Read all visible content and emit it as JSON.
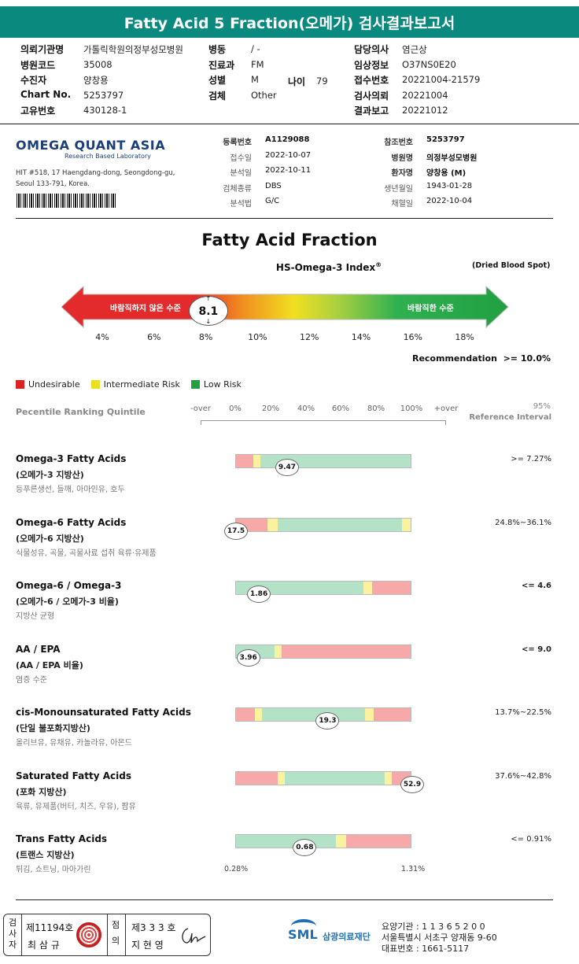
{
  "title": "Fatty Acid 5 Fraction(오메가) 검사결과보고서",
  "header": {
    "col1": [
      {
        "label": "의뢰기관명",
        "value": "가톨릭학원의정부성모병원"
      },
      {
        "label": "병원코드",
        "value": "35008"
      },
      {
        "label": "수진자",
        "value": "양창용"
      },
      {
        "label": "Chart No.",
        "value": "5253797"
      },
      {
        "label": "고유번호",
        "value": "430128-1"
      }
    ],
    "col2": [
      {
        "label": "병동",
        "value": "/ -"
      },
      {
        "label": "진료과",
        "value": "FM"
      },
      {
        "label": "성별",
        "value": "M"
      },
      {
        "label": "검체",
        "value": "Other"
      }
    ],
    "age_label": "나이",
    "age_value": "79",
    "col3": [
      {
        "label": "담당의사",
        "value": "염근상"
      },
      {
        "label": "임상정보",
        "value": "O37NS0E20"
      },
      {
        "label": "접수번호",
        "value": "20221004-21579"
      },
      {
        "label": "검사의뢰",
        "value": "20221004"
      },
      {
        "label": "결과보고",
        "value": "20221012"
      }
    ]
  },
  "lab": {
    "name": "OMEGA QUANT ASIA",
    "tagline": "Research Based Laboratory",
    "address1": "HIT #518, 17 Haengdang-dong, Seongdong-gu,",
    "address2": "Seoul 133-791, Korea."
  },
  "registration": {
    "left": [
      {
        "label": "등록번호",
        "value": "A1129088",
        "bold": true
      },
      {
        "label": "접수일",
        "value": "2022-10-07"
      },
      {
        "label": "분석일",
        "value": "2022-10-11"
      },
      {
        "label": "검체종류",
        "value": "DBS"
      },
      {
        "label": "분석법",
        "value": "G/C"
      }
    ],
    "right": [
      {
        "label": "참조번호",
        "value": "5253797",
        "bold": true
      },
      {
        "label": "병원명",
        "value": "의정부성모병원",
        "bold": true
      },
      {
        "label": "환자명",
        "value": "양창용 (M)",
        "bold": true
      },
      {
        "label": "생년월일",
        "value": "1943-01-28"
      },
      {
        "label": "채혈일",
        "value": "2022-10-04"
      }
    ]
  },
  "index": {
    "title": "Fatty Acid Fraction",
    "subtitle": "HS-Omega-3 Index",
    "sup": "®",
    "note": "(Dried Blood Spot)",
    "left_text": "바람직하지 않은 수준",
    "right_text": "바람직한 수준",
    "value": "8.1",
    "value_num": 8.1,
    "ticks": [
      "4%",
      "6%",
      "8%",
      "10%",
      "12%",
      "14%",
      "16%",
      "18%"
    ],
    "recommendation": "Recommendation  >= 10.0%"
  },
  "legend": [
    {
      "label": "Undesirable",
      "color": "#e02020"
    },
    {
      "label": "Intermediate Risk",
      "color": "#e8e020"
    },
    {
      "label": "Low Risk",
      "color": "#20a040"
    }
  ],
  "ranking": {
    "title": "Pecentile Ranking Quintile",
    "ticks": [
      "-over",
      "0%",
      "20%",
      "40%",
      "60%",
      "80%",
      "100%",
      "+over"
    ],
    "ref_title1": "95%",
    "ref_title2": "Reference Interval"
  },
  "colors": {
    "red": "#f7a8a8",
    "yellow": "#fbf2a0",
    "green": "#b4e2c6",
    "teal": "#0a8a7e"
  },
  "results": [
    {
      "name": "Omega-3 Fatty Acids",
      "sub": "(오메가-3 지방산)",
      "desc": "등푸른생선, 들깨, 아마인유, 호두",
      "value": "9.47",
      "ref": ">= 7.27%",
      "ref_bold": false,
      "segments": [
        [
          "red",
          0,
          0.1
        ],
        [
          "yellow",
          0.1,
          0.14
        ],
        [
          "green",
          0.14,
          1
        ]
      ],
      "marker": 0.29
    },
    {
      "name": "Omega-6 Fatty Acids",
      "sub": "(오메가-6 지방산)",
      "desc": "식물성유, 곡물, 곡물사료 섭취 육류·유제품",
      "value": "17.5",
      "ref": "24.8%~36.1%",
      "ref_bold": false,
      "segments": [
        [
          "red",
          0,
          0.18
        ],
        [
          "yellow",
          0.18,
          0.24
        ],
        [
          "green",
          0.24,
          0.95
        ],
        [
          "yellow",
          0.95,
          1
        ]
      ],
      "marker": 0.0
    },
    {
      "name": "Omega-6 / Omega-3",
      "sub": "(오메가-6 / 오메가-3 비율)",
      "desc": "지방산 균형",
      "value": "1.86",
      "ref": "<= 4.6",
      "ref_bold": true,
      "segments": [
        [
          "green",
          0,
          0.73
        ],
        [
          "yellow",
          0.73,
          0.78
        ],
        [
          "red",
          0.78,
          1
        ]
      ],
      "marker": 0.13
    },
    {
      "name": "AA / EPA",
      "sub": "(AA / EPA 비율)",
      "desc": "염증 수준",
      "value": "3.96",
      "ref": "<= 9.0",
      "ref_bold": true,
      "segments": [
        [
          "green",
          0,
          0.22
        ],
        [
          "yellow",
          0.22,
          0.26
        ],
        [
          "red",
          0.26,
          1
        ]
      ],
      "marker": 0.07
    },
    {
      "name": "cis-Monounsaturated Fatty Acids",
      "sub": "(단일 불포화지방산)",
      "desc": "올리브유, 유채유, 카놀라유, 아몬드",
      "value": "19.3",
      "ref": "13.7%~22.5%",
      "ref_bold": false,
      "segments": [
        [
          "red",
          0,
          0.11
        ],
        [
          "yellow",
          0.11,
          0.15
        ],
        [
          "green",
          0.15,
          0.74
        ],
        [
          "yellow",
          0.74,
          0.79
        ],
        [
          "red",
          0.79,
          1
        ]
      ],
      "marker": 0.52
    },
    {
      "name": "Saturated Fatty Acids",
      "sub": "(포화 지방산)",
      "desc": "육류, 유제품(버터, 치즈, 우유), 팜유",
      "value": "52.9",
      "ref": "37.6%~42.8%",
      "ref_bold": false,
      "segments": [
        [
          "red",
          0,
          0.24
        ],
        [
          "yellow",
          0.24,
          0.28
        ],
        [
          "green",
          0.28,
          0.85
        ],
        [
          "yellow",
          0.85,
          0.89
        ],
        [
          "red",
          0.89,
          1
        ]
      ],
      "marker": 1.0
    },
    {
      "name": "Trans Fatty Acids",
      "sub": "(트랜스 지방산)",
      "desc": "튀김, 쇼트닝, 마아가린",
      "value": "0.68",
      "ref": "<= 0.91%",
      "ref_bold": false,
      "segments": [
        [
          "green",
          0,
          0.57
        ],
        [
          "yellow",
          0.57,
          0.63
        ],
        [
          "red",
          0.63,
          1
        ]
      ],
      "marker": 0.39
    }
  ],
  "trans_range_min": "0.28%",
  "trans_range_max": "1.31%",
  "footer": {
    "box1_head": "검사자",
    "box1_no": "제11194호",
    "box1_name": "최 삼 규",
    "box2_head": "점의",
    "box2_no": "제3 3 3 호",
    "box2_name": "지 현 영",
    "org_logo": "SML",
    "org_name": "삼광의료재단",
    "line1": "요양기관 : 1 1 3 6 5 2 0 0",
    "line2": "서울특별시 서초구 양재동 9-60",
    "line3": "대표번호 : 1661-5117"
  }
}
